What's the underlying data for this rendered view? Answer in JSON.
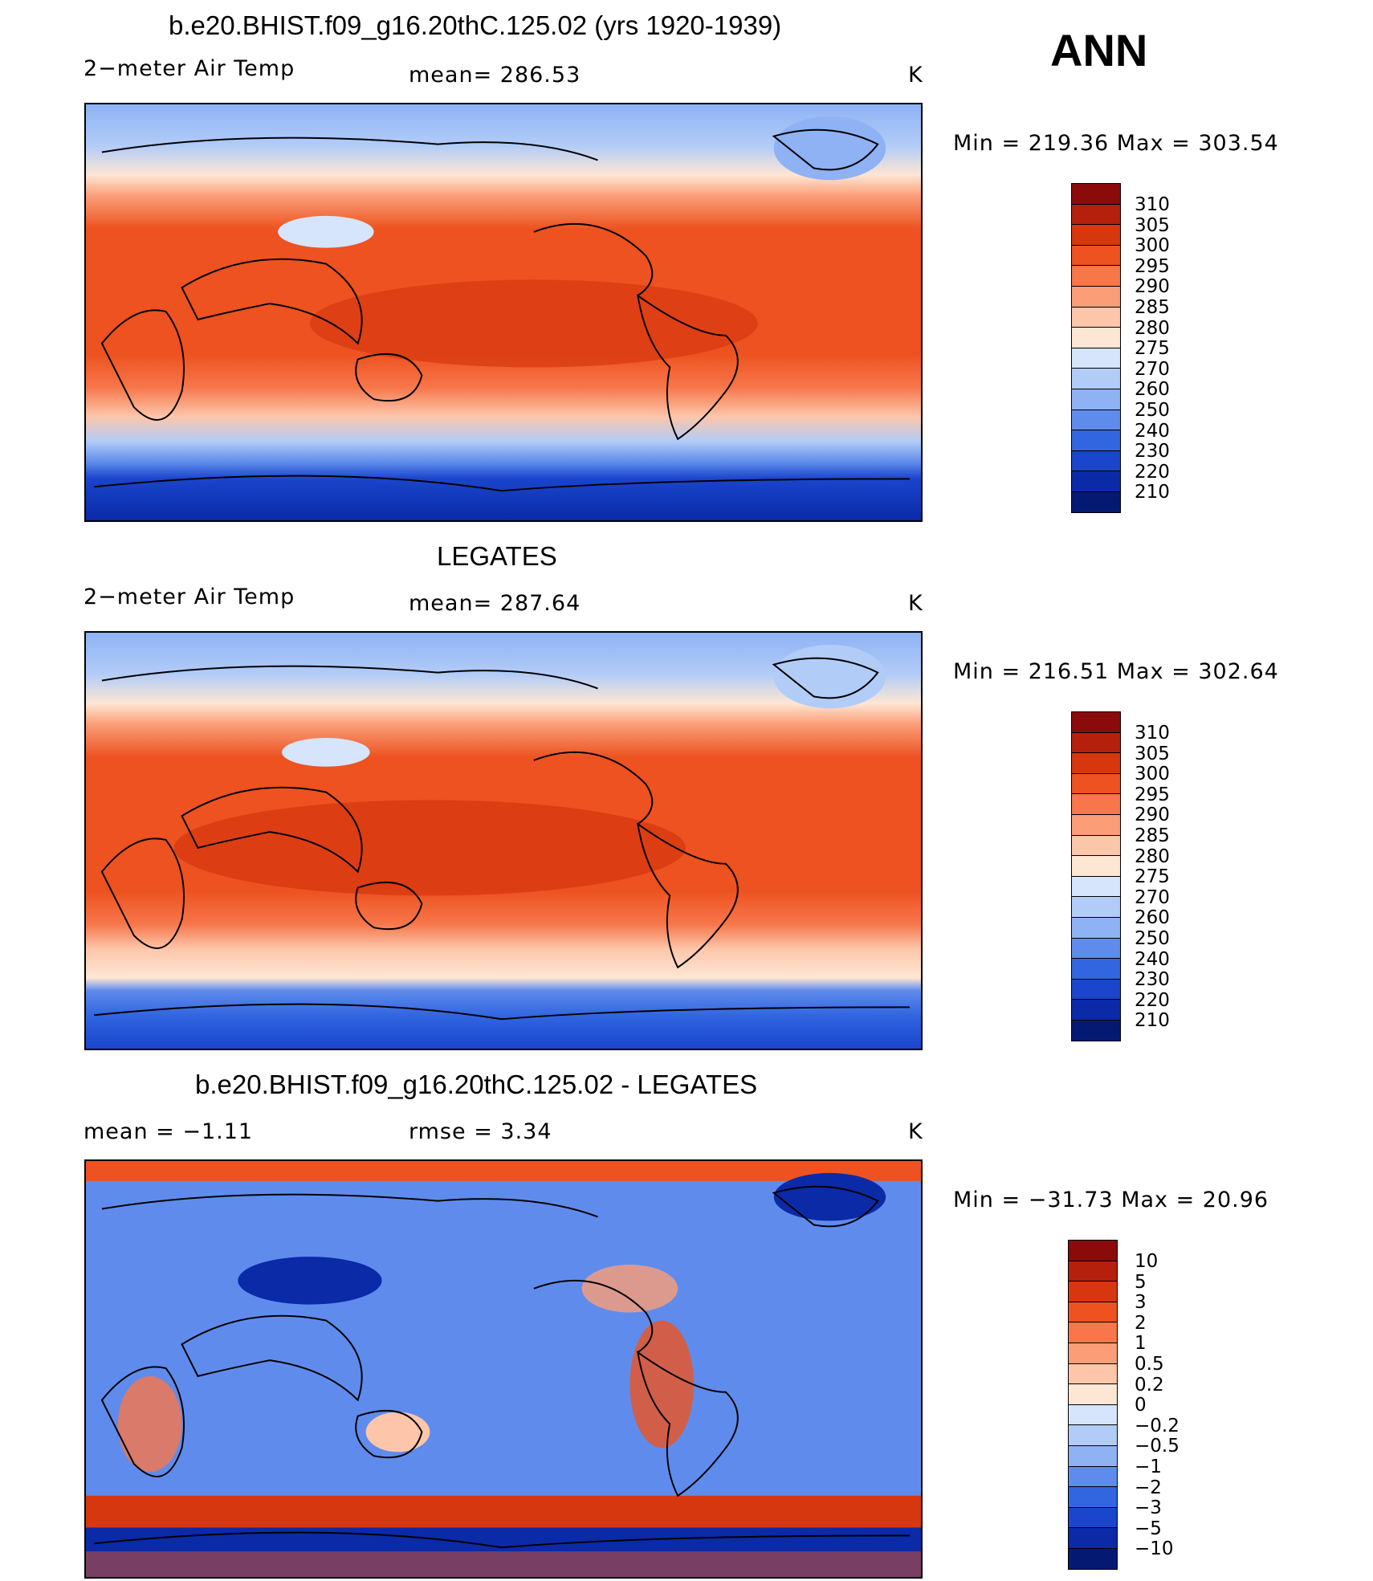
{
  "season": "ANN",
  "units_symbol": "K",
  "panels": [
    {
      "title": "b.e20.BHIST.f09_g16.20thC.125.02 (yrs 1920-1939)",
      "left_label": "2−meter Air Temp",
      "mean_text": "mean= 286.53",
      "minmax": "Min  =  219.36  Max  =  303.54",
      "cbar_levels": [
        "310",
        "305",
        "300",
        "295",
        "290",
        "285",
        "280",
        "275",
        "270",
        "260",
        "250",
        "240",
        "230",
        "220",
        "210"
      ],
      "cbar_colors": [
        "#8b0a0a",
        "#b5200d",
        "#d7370f",
        "#ed5220",
        "#f7764a",
        "#fb9e78",
        "#fdc6aa",
        "#fee6d4",
        "#d6e5fb",
        "#b2ccf8",
        "#8eb2f4",
        "#5f8cec",
        "#3266e0",
        "#1a45cc",
        "#0a2aa8",
        "#041a72"
      ],
      "map_desc": "model"
    },
    {
      "title": "LEGATES",
      "left_label": "2−meter Air Temp",
      "mean_text": "mean= 287.64",
      "minmax": "Min  =  216.51  Max  =  302.64",
      "cbar_levels": [
        "310",
        "305",
        "300",
        "295",
        "290",
        "285",
        "280",
        "275",
        "270",
        "260",
        "250",
        "240",
        "230",
        "220",
        "210"
      ],
      "cbar_colors": [
        "#8b0a0a",
        "#b5200d",
        "#d7370f",
        "#ed5220",
        "#f7764a",
        "#fb9e78",
        "#fdc6aa",
        "#fee6d4",
        "#d6e5fb",
        "#b2ccf8",
        "#8eb2f4",
        "#5f8cec",
        "#3266e0",
        "#1a45cc",
        "#0a2aa8",
        "#041a72"
      ],
      "map_desc": "obs"
    },
    {
      "title": "b.e20.BHIST.f09_g16.20thC.125.02 - LEGATES",
      "left_label": "mean =    −1.11",
      "mean_text": "rmse =      3.34",
      "minmax": "Min  =  −31.73  Max  =    20.96",
      "cbar_levels": [
        "10",
        "5",
        "3",
        "2",
        "1",
        "0.5",
        "0.2",
        "0",
        "−0.2",
        "−0.5",
        "−1",
        "−2",
        "−3",
        "−5",
        "−10"
      ],
      "cbar_colors": [
        "#8b0a0a",
        "#b5200d",
        "#d7370f",
        "#ed5220",
        "#f7764a",
        "#fb9e78",
        "#fdc6aa",
        "#fee6d4",
        "#d6e5fb",
        "#b2ccf8",
        "#8eb2f4",
        "#5f8cec",
        "#3266e0",
        "#1a45cc",
        "#0a2aa8",
        "#041a72"
      ],
      "map_desc": "diff"
    }
  ]
}
